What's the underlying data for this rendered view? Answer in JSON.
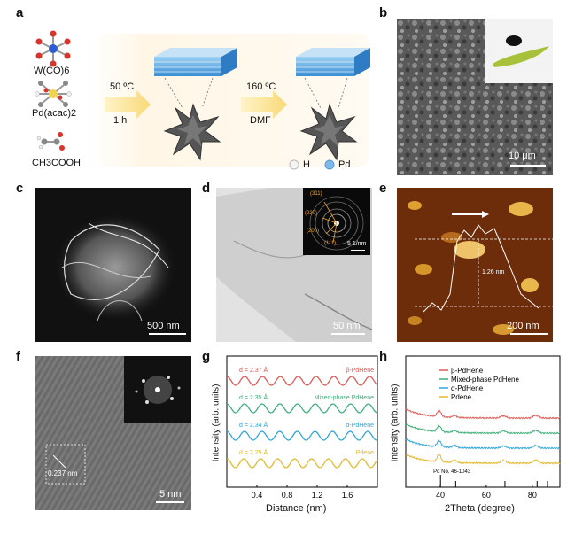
{
  "panel_labels": [
    "a",
    "b",
    "c",
    "d",
    "e",
    "f",
    "g",
    "h"
  ],
  "panel_a": {
    "reagents": [
      "W(CO)6",
      "Pd(acac)2",
      "CH3COOH"
    ],
    "step1": {
      "temp": "50 ºC",
      "time": "1 h"
    },
    "step2": {
      "temp": "160 ºC",
      "solvent": "DMF"
    },
    "legend": [
      {
        "label": "H",
        "color": "#f4f4f4"
      },
      {
        "label": "Pd",
        "color": "#7fb9ea"
      }
    ]
  },
  "panel_b": {
    "scale": "10 μm"
  },
  "panel_c": {
    "scale": "500 nm"
  },
  "panel_d": {
    "scale": "50 nm",
    "saed_scale": "5 1/nm",
    "saed_labels": [
      "(311)",
      "(220)",
      "(200)",
      "(111)"
    ]
  },
  "panel_e": {
    "scale": "200 nm",
    "height": "1.26 nm"
  },
  "panel_f": {
    "scale": "5 nm",
    "d_spacing": "0.237 nm"
  },
  "chart_data": [
    {
      "type": "line",
      "panel": "g",
      "xlabel": "Distance (nm)",
      "ylabel": "Intensity (arb. units)",
      "xlim": [
        0,
        2.0
      ],
      "xticks": [
        "0.4",
        "0.8",
        "1.2",
        "1.6"
      ],
      "series": [
        {
          "name": "β-PdHene",
          "d_label": "d = 2.37 Å",
          "period": 0.237,
          "color": "#e05a55"
        },
        {
          "name": "Mixed-phase PdHene",
          "d_label": "d = 2.35 Å",
          "period": 0.235,
          "color": "#3fae79"
        },
        {
          "name": "α-PdHene",
          "d_label": "d = 2.34 Å",
          "period": 0.234,
          "color": "#2ea6dc"
        },
        {
          "name": "Pdene",
          "d_label": "d = 2.25 Å",
          "period": 0.225,
          "color": "#e6b82a"
        }
      ]
    },
    {
      "type": "line",
      "panel": "h",
      "xlabel": "2Theta (degree)",
      "ylabel": "Intensity (arb. units)",
      "xlim": [
        25,
        92
      ],
      "xticks": [
        "40",
        "60",
        "80"
      ],
      "reference": "Pd No. 46-1043",
      "reference_peaks": [
        40.1,
        46.7,
        68.1,
        82.1,
        86.6
      ],
      "series": [
        {
          "name": "β-PdHene",
          "color": "#e05a55"
        },
        {
          "name": "Mixed-phase PdHene",
          "color": "#3fae79"
        },
        {
          "name": "α-PdHene",
          "color": "#2ea6dc"
        },
        {
          "name": "Pdene",
          "color": "#e6b82a"
        }
      ]
    }
  ]
}
